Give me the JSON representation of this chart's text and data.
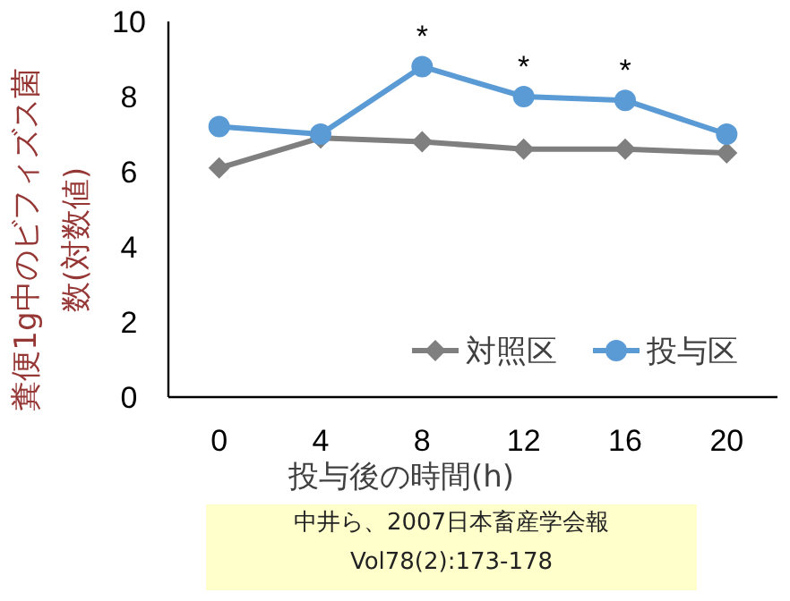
{
  "chart_data": {
    "type": "line",
    "categories": [
      "0",
      "4",
      "8",
      "12",
      "16",
      "20"
    ],
    "series": [
      {
        "name": "対照区",
        "color": "#7f7f7f",
        "marker": "diamond",
        "values": [
          6.1,
          6.9,
          6.8,
          6.6,
          6.6,
          6.5
        ]
      },
      {
        "name": "投与区",
        "color": "#5b9bd5",
        "marker": "circle",
        "values": [
          7.2,
          7.0,
          8.8,
          8.0,
          7.9,
          7.0
        ]
      }
    ],
    "ylim": [
      0,
      10
    ],
    "yticks": [
      0,
      2,
      4,
      6,
      8,
      10
    ],
    "xlabel": "投与後の時間(h)",
    "ylabel": "糞便1g中のビフィズス菌数(対数値)",
    "grid": false,
    "legend": "bottom right",
    "annotations": [
      {
        "text": "*",
        "x": "8",
        "y": 8.8
      },
      {
        "text": "*",
        "x": "12",
        "y": 8.0
      },
      {
        "text": "*",
        "x": "16",
        "y": 7.9
      },
      "中井ら、2007日本畜産学会報",
      "Vol78(2):173-178"
    ]
  }
}
